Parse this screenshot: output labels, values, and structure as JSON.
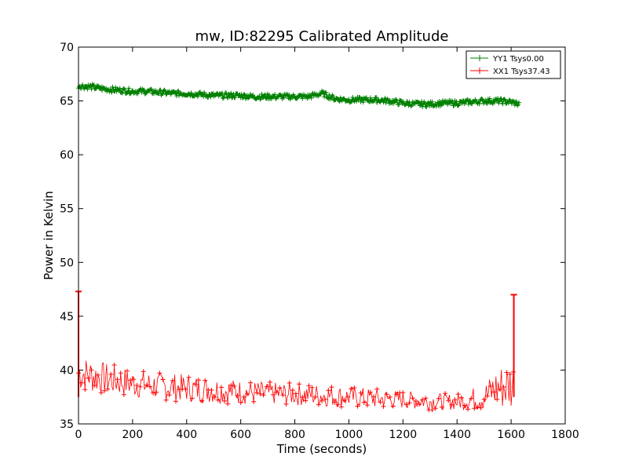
{
  "chart_data": {
    "type": "line",
    "title": "mw, ID:82295 Calibrated Amplitude",
    "xlabel": "Time (seconds)",
    "ylabel": "Power in Kelvin",
    "xlim": [
      0,
      1800
    ],
    "ylim": [
      35,
      70
    ],
    "xticks": [
      0,
      200,
      400,
      600,
      800,
      1000,
      1200,
      1400,
      1600,
      1800
    ],
    "yticks": [
      35,
      40,
      45,
      50,
      55,
      60,
      65,
      70
    ],
    "grid": false,
    "legend_position": "top-right",
    "marker": "plus",
    "series": [
      {
        "name": "YY1 Tsys0.00",
        "color": "#008000",
        "points": [
          [
            0,
            66.4
          ],
          [
            50,
            66.3
          ],
          [
            100,
            66.1
          ],
          [
            150,
            66.0
          ],
          [
            200,
            65.9
          ],
          [
            250,
            65.9
          ],
          [
            300,
            65.8
          ],
          [
            350,
            65.7
          ],
          [
            400,
            65.7
          ],
          [
            450,
            65.6
          ],
          [
            500,
            65.5
          ],
          [
            550,
            65.5
          ],
          [
            600,
            65.5
          ],
          [
            650,
            65.4
          ],
          [
            700,
            65.4
          ],
          [
            750,
            65.4
          ],
          [
            800,
            65.4
          ],
          [
            850,
            65.4
          ],
          [
            900,
            65.7
          ],
          [
            950,
            65.2
          ],
          [
            1000,
            65.1
          ],
          [
            1050,
            65.1
          ],
          [
            1100,
            65.1
          ],
          [
            1150,
            65.0
          ],
          [
            1200,
            64.8
          ],
          [
            1250,
            64.7
          ],
          [
            1300,
            64.7
          ],
          [
            1350,
            64.8
          ],
          [
            1400,
            64.8
          ],
          [
            1450,
            64.9
          ],
          [
            1500,
            65.0
          ],
          [
            1550,
            65.0
          ],
          [
            1600,
            64.9
          ],
          [
            1630,
            64.7
          ]
        ]
      },
      {
        "name": "XX1 Tsys37.43",
        "color": "#ff0000",
        "spread_band": [
          [
            0,
            38.0,
            41.5
          ],
          [
            100,
            37.7,
            40.7
          ],
          [
            200,
            37.4,
            40.1
          ],
          [
            300,
            37.2,
            39.8
          ],
          [
            400,
            37.0,
            39.6
          ],
          [
            500,
            36.9,
            39.4
          ],
          [
            600,
            36.8,
            39.1
          ],
          [
            700,
            36.8,
            38.9
          ],
          [
            800,
            36.7,
            38.8
          ],
          [
            900,
            36.6,
            38.7
          ],
          [
            1000,
            36.5,
            38.5
          ],
          [
            1100,
            36.4,
            38.3
          ],
          [
            1200,
            36.4,
            38.1
          ],
          [
            1300,
            36.3,
            37.9
          ],
          [
            1400,
            36.3,
            37.8
          ],
          [
            1500,
            36.2,
            38.8
          ],
          [
            1550,
            36.2,
            40.5
          ],
          [
            1610,
            36.2,
            41.0
          ]
        ],
        "spikes": [
          [
            0,
            47.3
          ],
          [
            1610,
            47.0
          ]
        ]
      }
    ]
  }
}
